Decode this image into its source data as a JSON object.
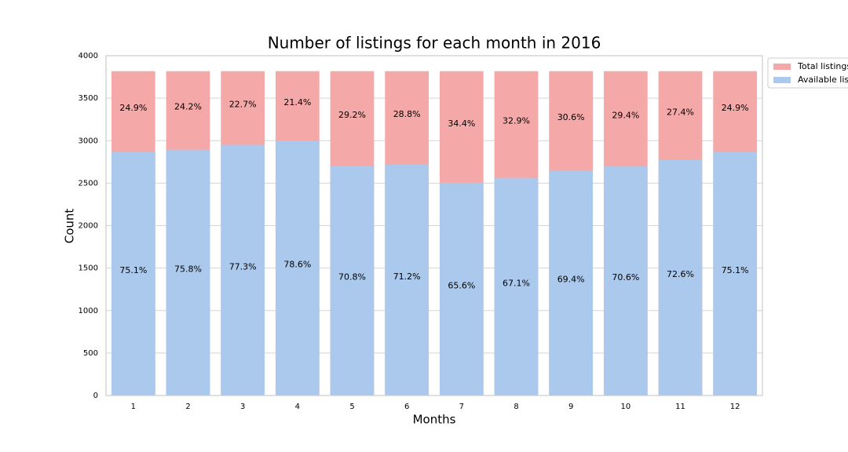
{
  "chart_data": {
    "type": "bar",
    "overlap": true,
    "title": "Number of listings for each month in 2016",
    "xlabel": "Months",
    "ylabel": "Count",
    "categories": [
      "1",
      "2",
      "3",
      "4",
      "5",
      "6",
      "7",
      "8",
      "9",
      "10",
      "11",
      "12"
    ],
    "series": [
      {
        "name": "Total listings",
        "color": "#f4a9a8",
        "values": [
          3818,
          3818,
          3818,
          3818,
          3818,
          3818,
          3818,
          3818,
          3818,
          3818,
          3818,
          3818
        ],
        "percent_values": [
          24.9,
          24.2,
          22.7,
          21.4,
          29.2,
          28.8,
          34.4,
          32.9,
          30.6,
          29.4,
          27.4,
          24.9
        ],
        "percent_labels": [
          "24.9%",
          "24.2%",
          "22.7%",
          "21.4%",
          "29.2%",
          "28.8%",
          "34.4%",
          "32.9%",
          "30.6%",
          "29.4%",
          "27.4%",
          "24.9%"
        ]
      },
      {
        "name": "Available listings",
        "color": "#abc9ec",
        "values": [
          2867,
          2894,
          2951,
          3001,
          2703,
          2718,
          2505,
          2562,
          2650,
          2696,
          2772,
          2867
        ],
        "percent_values": [
          75.1,
          75.8,
          77.3,
          78.6,
          70.8,
          71.2,
          65.6,
          67.1,
          69.4,
          70.6,
          72.6,
          75.1
        ],
        "percent_labels": [
          "75.1%",
          "75.8%",
          "77.3%",
          "78.6%",
          "70.8%",
          "71.2%",
          "65.6%",
          "67.1%",
          "69.4%",
          "70.6%",
          "72.6%",
          "75.1%"
        ]
      }
    ],
    "ylim": [
      0,
      4000
    ],
    "yticks": [
      0,
      500,
      1000,
      1500,
      2000,
      2500,
      3000,
      3500,
      4000
    ],
    "grid": true,
    "legend": "outside-upper-right"
  }
}
